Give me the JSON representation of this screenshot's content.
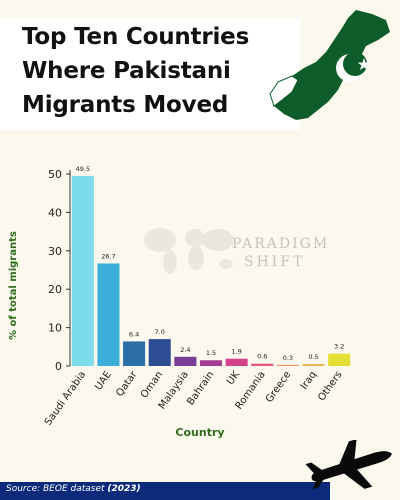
{
  "header": {
    "title_line1": "Top Ten Countries",
    "title_line2": "Where Pakistani",
    "title_line3": "Migrants Moved"
  },
  "watermark": {
    "line1": "PARADIGM",
    "line2": "SHIFT"
  },
  "source": {
    "prefix": "Source: BEOE dataset ",
    "year": "(2023)"
  },
  "colors": {
    "flag_green": "#0d5c2a",
    "axis_label": "#2f6a1d",
    "source_band": "#0b2a7a",
    "background": "#fbf8ee"
  },
  "icons": [
    "pakistan-flag-map-icon",
    "world-map-watermark-icon",
    "airplane-icon"
  ],
  "chart_data": {
    "type": "bar",
    "xlabel": "Country",
    "ylabel": "% of total migrants",
    "ylim": [
      0,
      50
    ],
    "yticks": [
      0,
      10,
      20,
      30,
      40,
      50
    ],
    "grid": false,
    "categories": [
      "Saudi Arabia",
      "UAE",
      "Qatar",
      "Oman",
      "Malaysia",
      "Bahrain",
      "UK",
      "Romania",
      "Greece",
      "Iraq",
      "Others"
    ],
    "values": [
      49.5,
      26.7,
      6.4,
      7.0,
      2.4,
      1.5,
      1.9,
      0.6,
      0.3,
      0.5,
      3.2
    ],
    "value_labels": [
      "49.5",
      "26.7",
      "6.4",
      "7.0",
      "2.4",
      "1.5",
      "1.9",
      "0.6",
      "0.3",
      "0.5",
      "3.2"
    ],
    "bar_colors": [
      "#7ddcea",
      "#3aaed8",
      "#2b6ea8",
      "#2c4d94",
      "#7b3e97",
      "#a53c94",
      "#d4428a",
      "#e05a7a",
      "#ef8a6b",
      "#f3b24c",
      "#e3df35"
    ]
  }
}
